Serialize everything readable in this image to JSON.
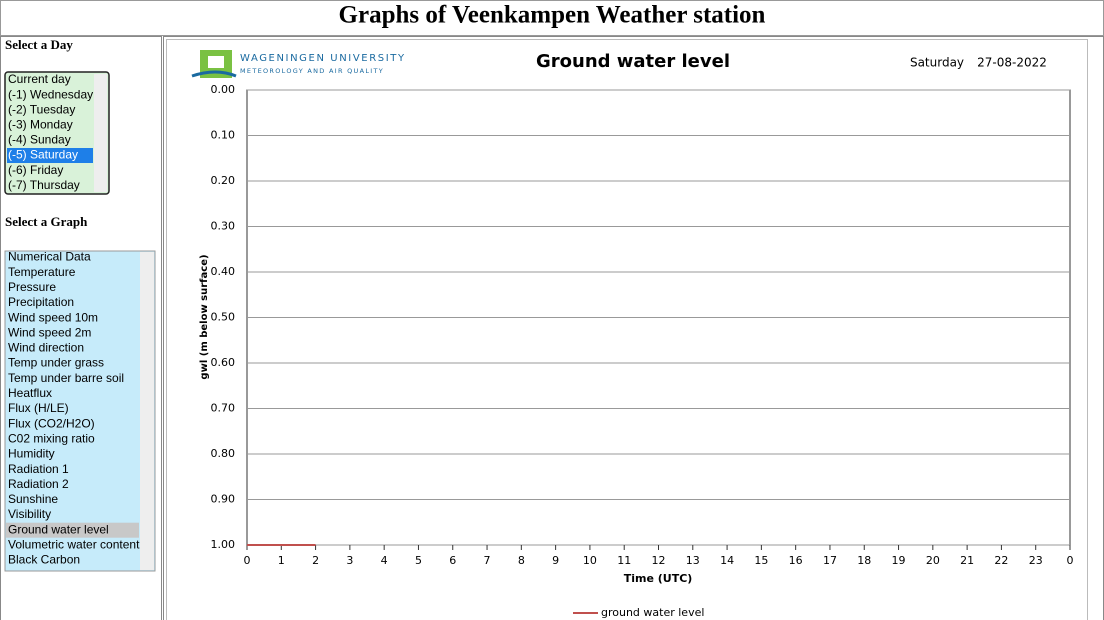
{
  "header": {
    "title": "Graphs of Veenkampen Weather station"
  },
  "sidebar": {
    "day_label": "Select a Day",
    "days": [
      "Current day",
      "(-1) Wednesday",
      "(-2) Tuesday",
      "(-3) Monday",
      "(-4) Sunday",
      "(-5) Saturday",
      "(-6) Friday",
      "(-7) Thursday"
    ],
    "selected_day": 5,
    "graph_label": "Select a Graph",
    "graphs": [
      "Numerical Data",
      "Temperature",
      "Pressure",
      "Precipitation",
      "Wind speed 10m",
      "Wind speed 2m",
      "Wind direction",
      "Temp under grass",
      "Temp under barre soil",
      "Heatflux",
      "Flux (H/LE)",
      "Flux (CO2/H2O)",
      "C02 mixing ratio",
      "Humidity",
      "Radiation 1",
      "Radiation 2",
      "Sunshine",
      "Visibility",
      "Ground water level",
      "Volumetric water content",
      "Black Carbon"
    ],
    "selected_graph": 18
  },
  "logo": {
    "name": "WAGENINGEN UNIVERSITY",
    "group": "METEOROLOGY AND AIR QUALITY"
  },
  "chart_data": {
    "type": "line",
    "title": "Ground water level",
    "day": "Saturday",
    "date": "27-08-2022",
    "x_label": "Time (UTC)",
    "y_label": "gwl (m below surface)",
    "x": [
      0,
      0.5,
      1,
      1.5,
      2
    ],
    "series": [
      {
        "name": "ground water level",
        "color": "#c0504d",
        "values": [
          1,
          1,
          1,
          1,
          1
        ]
      }
    ],
    "xlim": [
      0,
      24
    ],
    "xticks": [
      0,
      1,
      2,
      3,
      4,
      5,
      6,
      7,
      8,
      9,
      10,
      11,
      12,
      13,
      14,
      15,
      16,
      17,
      18,
      19,
      20,
      21,
      22,
      23,
      {
        "value": 24,
        "label": "0"
      }
    ],
    "ylim": [
      0,
      1
    ],
    "y_inverted": true,
    "yticks": [
      {
        "value": 0,
        "label": "0.00"
      },
      {
        "value": 0.1,
        "label": "0.10"
      },
      {
        "value": 0.2,
        "label": "0.20"
      },
      {
        "value": 0.3,
        "label": "0.30"
      },
      {
        "value": 0.4,
        "label": "0.40"
      },
      {
        "value": 0.5,
        "label": "0.50"
      },
      {
        "value": 0.6,
        "label": "0.60"
      },
      {
        "value": 0.7,
        "label": "0.70"
      },
      {
        "value": 0.8,
        "label": "0.80"
      },
      {
        "value": 0.9,
        "label": "0.90"
      },
      {
        "value": 1,
        "label": "1.00"
      }
    ],
    "grid": true
  }
}
